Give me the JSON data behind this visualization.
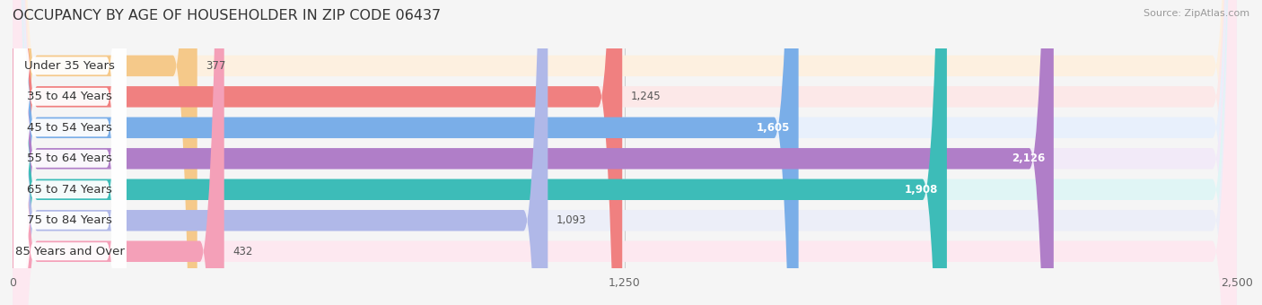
{
  "title": "OCCUPANCY BY AGE OF HOUSEHOLDER IN ZIP CODE 06437",
  "source": "Source: ZipAtlas.com",
  "categories": [
    "Under 35 Years",
    "35 to 44 Years",
    "45 to 54 Years",
    "55 to 64 Years",
    "65 to 74 Years",
    "75 to 84 Years",
    "85 Years and Over"
  ],
  "values": [
    377,
    1245,
    1605,
    2126,
    1908,
    1093,
    432
  ],
  "bar_colors": [
    "#f5c98a",
    "#f08080",
    "#7aaee8",
    "#b07ec8",
    "#3dbcb8",
    "#b0b8e8",
    "#f4a0b8"
  ],
  "bar_bg_colors": [
    "#fdf0e0",
    "#fce8e8",
    "#e8f0fc",
    "#f2eaf8",
    "#e0f5f5",
    "#eceef8",
    "#fde8f0"
  ],
  "xlim": [
    0,
    2500
  ],
  "xticks": [
    0,
    1250,
    2500
  ],
  "background_color": "#f5f5f5",
  "title_fontsize": 11.5,
  "label_fontsize": 9.5,
  "value_fontsize": 8.5,
  "tick_fontsize": 9
}
